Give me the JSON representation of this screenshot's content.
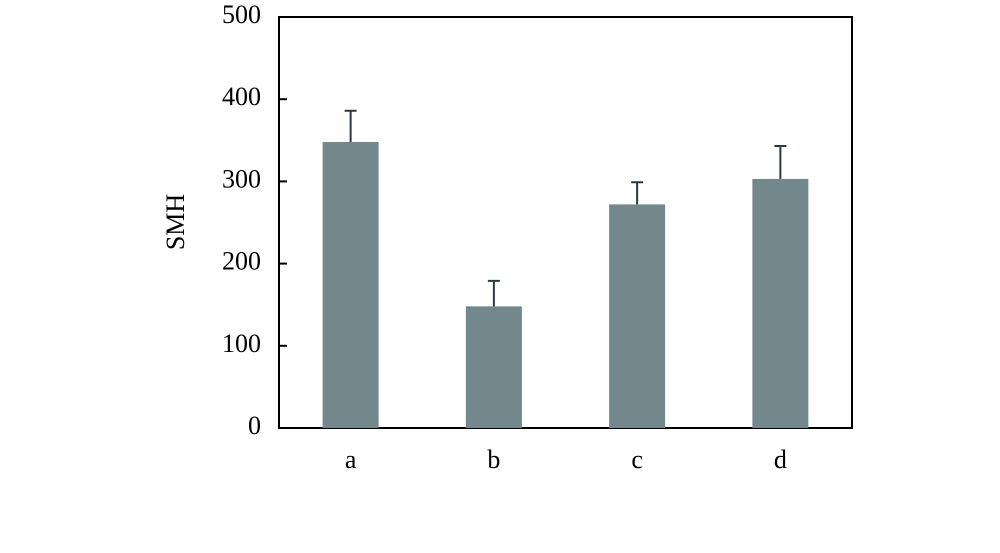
{
  "chart_data": {
    "type": "bar",
    "y_label": "SMH",
    "categories": [
      "a",
      "b",
      "c",
      "d"
    ],
    "values": [
      348,
      148,
      272,
      303
    ],
    "errors": [
      38,
      31,
      27,
      40
    ],
    "color": "#72888c",
    "ylim": [
      0,
      500
    ],
    "yticks": [
      0,
      100,
      200,
      300,
      400,
      500
    ]
  }
}
